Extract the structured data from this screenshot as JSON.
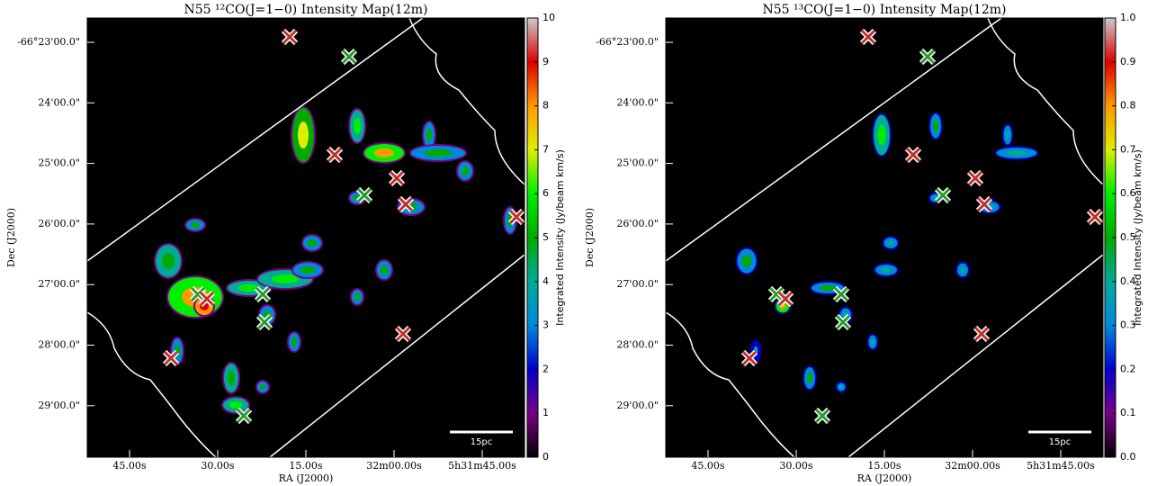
{
  "chart_data": [
    {
      "type": "map",
      "title": "N55 ¹²CO(J=1−0) Intensity Map(12m)",
      "xlabel": "RA (J2000)",
      "ylabel": "Dec (J2000)",
      "xtick_labels": [
        "45.00s",
        "30.00s",
        "15.00s",
        "32m00.00s",
        "5h31m45.00s"
      ],
      "ytick_labels": [
        "-66°23'00.0\"",
        "24'00.0\"",
        "25'00.0\"",
        "26'00.0\"",
        "27'00.0\"",
        "28'00.0\"",
        "29'00.0\""
      ],
      "colorbar_label": "Integrated Intensity (Jy/beam km/s)",
      "clim": [
        0,
        10
      ],
      "cticks": [
        0,
        1,
        2,
        3,
        4,
        5,
        6,
        7,
        8,
        9,
        10
      ],
      "scalebar": "15pc"
    },
    {
      "type": "map",
      "title": "N55 ¹³CO(J=1−0) Intensity Map(12m)",
      "xlabel": "RA (J2000)",
      "ylabel": "Dec (J2000)",
      "xtick_labels": [
        "45.00s",
        "30.00s",
        "15.00s",
        "32m00.00s",
        "5h31m45.00s"
      ],
      "ytick_labels": [
        "-66°23'00.0\"",
        "24'00.0\"",
        "25'00.0\"",
        "26'00.0\"",
        "27'00.0\"",
        "28'00.0\"",
        "29'00.0\""
      ],
      "colorbar_label": "Integrated Intensity (Jy/beam km/s)",
      "clim": [
        0,
        1
      ],
      "cticks": [
        {
          "value": 0,
          "label": "0.0"
        },
        0.1,
        0.2,
        0.3,
        0.4,
        0.5,
        0.6,
        0.7,
        0.8,
        0.9,
        {
          "value": 1,
          "label": "1.0"
        }
      ],
      "scalebar": "15pc"
    }
  ]
}
